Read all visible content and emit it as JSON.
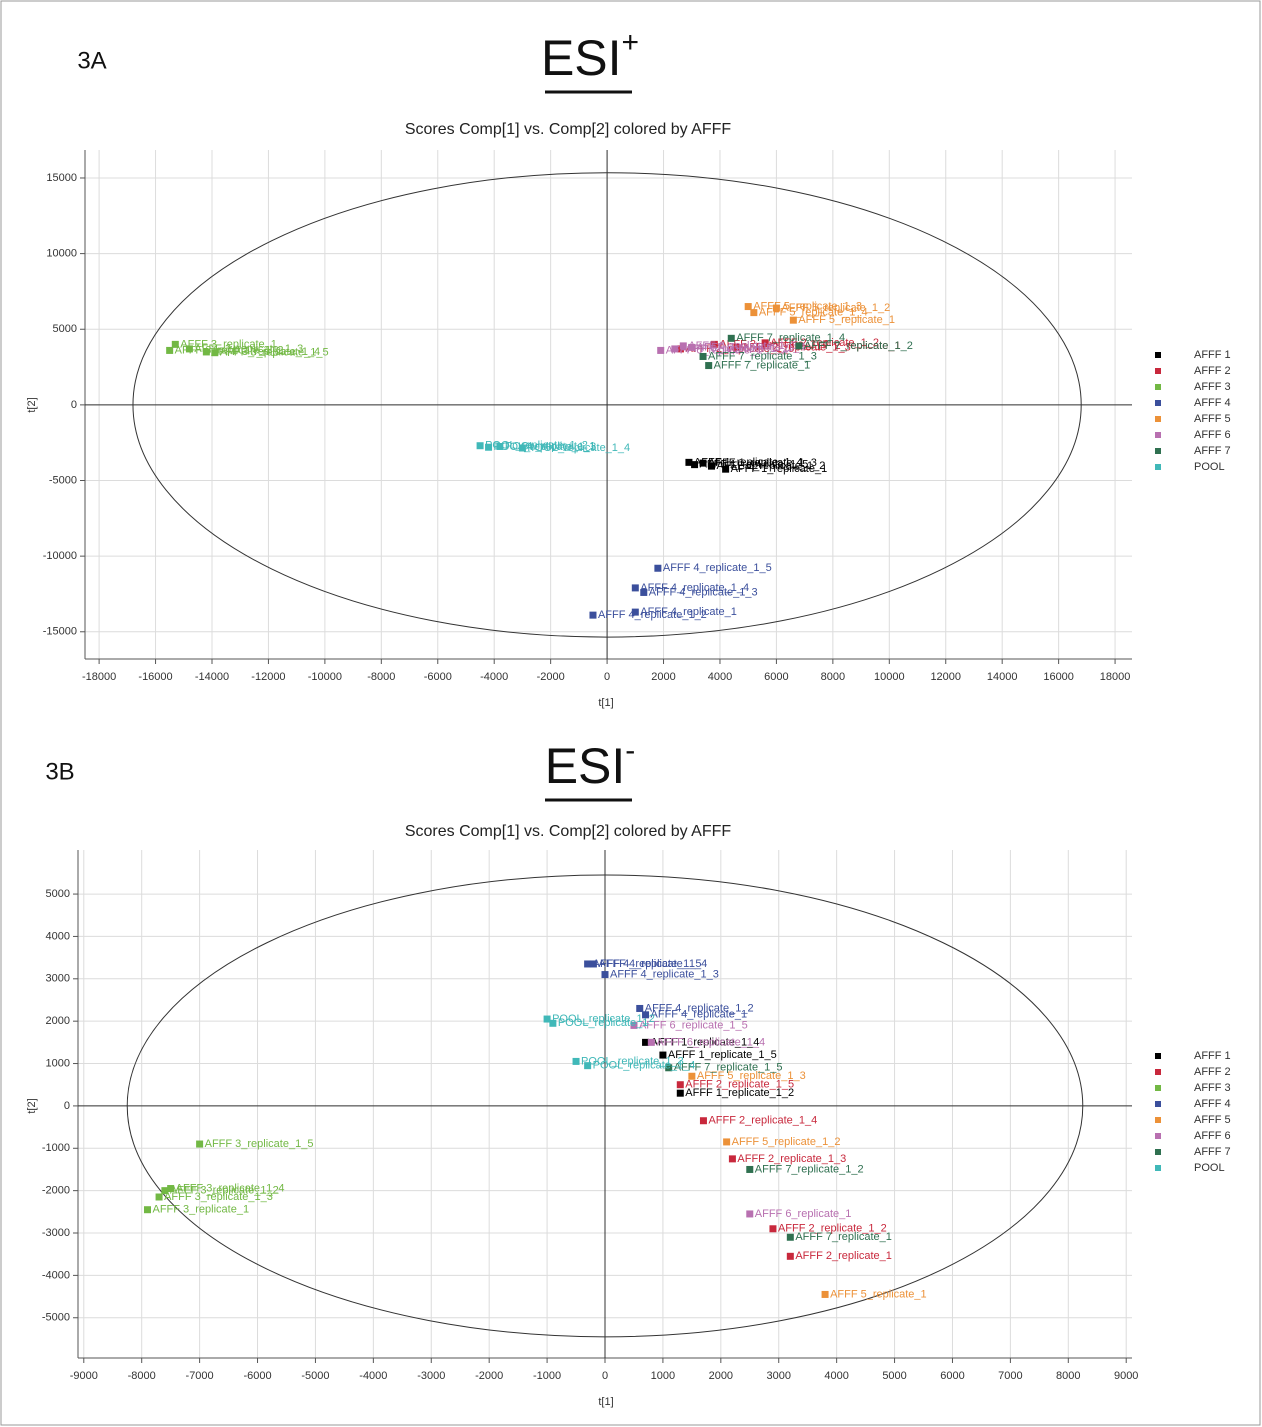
{
  "chart_data": [
    {
      "type": "scatter",
      "panel_label": "3A",
      "heading": "ESI",
      "heading_superscript": "+",
      "title": "Scores Comp[1] vs. Comp[2] colored by AFFF",
      "xlabel": "t[1]",
      "ylabel": "t[2]",
      "xlim": [
        -18500,
        18600
      ],
      "ylim": [
        -16800,
        16850
      ],
      "xticks": [
        -18000,
        -16000,
        -14000,
        -12000,
        -10000,
        -8000,
        -6000,
        -4000,
        -2000,
        0,
        2000,
        4000,
        6000,
        8000,
        10000,
        12000,
        14000,
        16000,
        18000
      ],
      "yticks": [
        -15000,
        -10000,
        -5000,
        0,
        5000,
        10000,
        15000
      ],
      "grid": true,
      "legend": "right",
      "ellipse": [
        16800,
        15350
      ],
      "series": [
        {
          "name": "AFFF 1",
          "color": "#000000",
          "x": [
            2900,
            3100,
            3400,
            3700,
            4200
          ],
          "values": [
            -3800,
            -3950,
            -3850,
            -4050,
            -4250
          ],
          "point_labels": [
            "AFFF 1_replicate_1_4",
            "AFFF 1_replicate_1_5",
            "AFFF 1_replicate_1_3",
            "AFFF 1_replicate_1_2",
            "AFFF 1_replicate_1"
          ]
        },
        {
          "name": "AFFF 2",
          "color": "#c8283c",
          "x": [
            2600,
            3800,
            4600,
            5600,
            6800
          ],
          "values": [
            3700,
            4000,
            3800,
            4100,
            3900
          ],
          "point_labels": [
            "AFFF 2_replicate_1_5",
            "AFFF 2_replicate_1_4",
            "AFFF 2_replicate_1_3",
            "AFFF 2_replicate_1_2",
            "AFFF 2_replicate_1"
          ]
        },
        {
          "name": "AFFF 3",
          "color": "#72b844",
          "x": [
            -15300,
            -15500,
            -14800,
            -14200,
            -13900
          ],
          "values": [
            4000,
            3600,
            3700,
            3500,
            3450
          ],
          "point_labels": [
            "AFFF 3_replicate_1",
            "AFFF 3_replicate_1_2",
            "AFFF 3_replicate_1_3",
            "AFFF 3_replicate_1_4",
            "AFFF 3_replicate_1_5"
          ]
        },
        {
          "name": "AFFF 4",
          "color": "#3b4f9c",
          "x": [
            1800,
            1000,
            1300,
            1000,
            -500
          ],
          "values": [
            -10800,
            -12100,
            -12400,
            -13700,
            -13900
          ],
          "point_labels": [
            "AFFF 4_replicate_1_5",
            "AFFF 4_replicate_1_4",
            "AFFF 4_replicate_1_3",
            "AFFF 4_replicate_1",
            "AFFF 4_replicate_1_2"
          ]
        },
        {
          "name": "AFFF 5",
          "color": "#ec9138",
          "x": [
            5000,
            5200,
            6000,
            6600
          ],
          "values": [
            6500,
            6100,
            6400,
            5600
          ],
          "point_labels": [
            "AFFF 5_replicate_1_3",
            "AFFF 5_replicate_1_4",
            "AFFF 5_replicate_1_2",
            "AFFF 5_replicate_1"
          ]
        },
        {
          "name": "AFFF 6",
          "color": "#b870b0",
          "x": [
            1900,
            2400,
            2700,
            3000
          ],
          "values": [
            3600,
            3700,
            3900,
            3800
          ],
          "point_labels": [
            "AFFF 6_replicate_1",
            "AFFF 6_replicate_1_2",
            "AFFF 6_replicate_1_3",
            "AFFF 6_replicate_1_4"
          ]
        },
        {
          "name": "AFFF 7",
          "color": "#2f7050",
          "x": [
            3600,
            3400,
            4400,
            6800
          ],
          "values": [
            2600,
            3200,
            4400,
            3900
          ],
          "point_labels": [
            "AFFF 7_replicate_1",
            "AFFF 7_replicate_1_3",
            "AFFF 7_replicate_1_4",
            "AFFF 7_replicate_1_2"
          ]
        },
        {
          "name": "POOL",
          "color": "#40b8b8",
          "x": [
            -4500,
            -4200,
            -3800,
            -3000
          ],
          "values": [
            -2700,
            -2800,
            -2750,
            -2850
          ],
          "point_labels": [
            "POOL_replicate_1_2",
            "POOL_replicate_1_3",
            "POOL_replicate_1",
            "POOL_replicate_1_4"
          ]
        }
      ]
    },
    {
      "type": "scatter",
      "panel_label": "3B",
      "heading": "ESI",
      "heading_superscript": "-",
      "title": "Scores Comp[1] vs. Comp[2] colored by AFFF",
      "xlabel": "t[1]",
      "ylabel": "t[2]",
      "xlim": [
        -9100,
        9100
      ],
      "ylim": [
        -5950,
        6040
      ],
      "xticks": [
        -9000,
        -8000,
        -7000,
        -6000,
        -5000,
        -4000,
        -3000,
        -2000,
        -1000,
        0,
        1000,
        2000,
        3000,
        4000,
        5000,
        6000,
        7000,
        8000,
        9000
      ],
      "yticks": [
        -5000,
        -4000,
        -3000,
        -2000,
        -1000,
        0,
        1000,
        2000,
        3000,
        4000,
        5000
      ],
      "grid": true,
      "legend": "right",
      "ellipse": [
        8250,
        5450
      ],
      "series": [
        {
          "name": "AFFF 1",
          "color": "#000000",
          "x": [
            700,
            1000,
            1300
          ],
          "values": [
            1500,
            1200,
            300
          ],
          "point_labels": [
            "AFFF 1_replicate_1_4",
            "AFFF 1_replicate_1_5",
            "AFFF 1_replicate_1_2"
          ]
        },
        {
          "name": "AFFF 2",
          "color": "#c8283c",
          "x": [
            1300,
            1700,
            2200,
            2900,
            3200
          ],
          "values": [
            500,
            -350,
            -1250,
            -2900,
            -3550
          ],
          "point_labels": [
            "AFFF 2_replicate_1_5",
            "AFFF 2_replicate_1_4",
            "AFFF 2_replicate_1_3",
            "AFFF 2_replicate_1_2",
            "AFFF 2_replicate_1"
          ]
        },
        {
          "name": "AFFF 3",
          "color": "#72b844",
          "x": [
            -7000,
            -7500,
            -7600,
            -7700,
            -7900
          ],
          "values": [
            -900,
            -1950,
            -2000,
            -2150,
            -2450
          ],
          "point_labels": [
            "AFFF 3_replicate_1_5",
            "AFFF 3_replicate_1_4",
            "AFFF 3_replicate_1_2",
            "AFFF 3_replicate_1_3",
            "AFFF 3_replicate_1"
          ]
        },
        {
          "name": "AFFF 4",
          "color": "#3b4f9c",
          "x": [
            -300,
            -200,
            0,
            600,
            700
          ],
          "values": [
            3350,
            3350,
            3100,
            2300,
            2150
          ],
          "point_labels": [
            "AFFF 4_replicate_1_5",
            "AFFF 4_replicate_1_4",
            "AFFF 4_replicate_1_3",
            "AFFF 4_replicate_1_2",
            "AFFF 4_replicate_1"
          ]
        },
        {
          "name": "AFFF 5",
          "color": "#ec9138",
          "x": [
            1500,
            2100,
            3800
          ],
          "values": [
            700,
            -850,
            -4450
          ],
          "point_labels": [
            "AFFF 5_replicate_1_3",
            "AFFF 5_replicate_1_2",
            "AFFF 5_replicate_1"
          ]
        },
        {
          "name": "AFFF 6",
          "color": "#b870b0",
          "x": [
            500,
            800,
            2500
          ],
          "values": [
            1900,
            1500,
            -2550
          ],
          "point_labels": [
            "AFFF 6_replicate_1_5",
            "AFFF 6_replicate_1_4",
            "AFFF 6_replicate_1"
          ]
        },
        {
          "name": "AFFF 7",
          "color": "#2f7050",
          "x": [
            1100,
            2500,
            3200
          ],
          "values": [
            900,
            -1500,
            -3100
          ],
          "point_labels": [
            "AFFF 7_replicate_1_5",
            "AFFF 7_replicate_1_2",
            "AFFF 7_replicate_1"
          ]
        },
        {
          "name": "POOL",
          "color": "#40b8b8",
          "x": [
            -1000,
            -900,
            -500,
            -300
          ],
          "values": [
            2050,
            1950,
            1050,
            950
          ],
          "point_labels": [
            "POOL_replicate_1_2",
            "POOL_replicate_1",
            "POOL_replicate_1_3",
            "POOL_replicate_1_4"
          ]
        }
      ]
    }
  ]
}
